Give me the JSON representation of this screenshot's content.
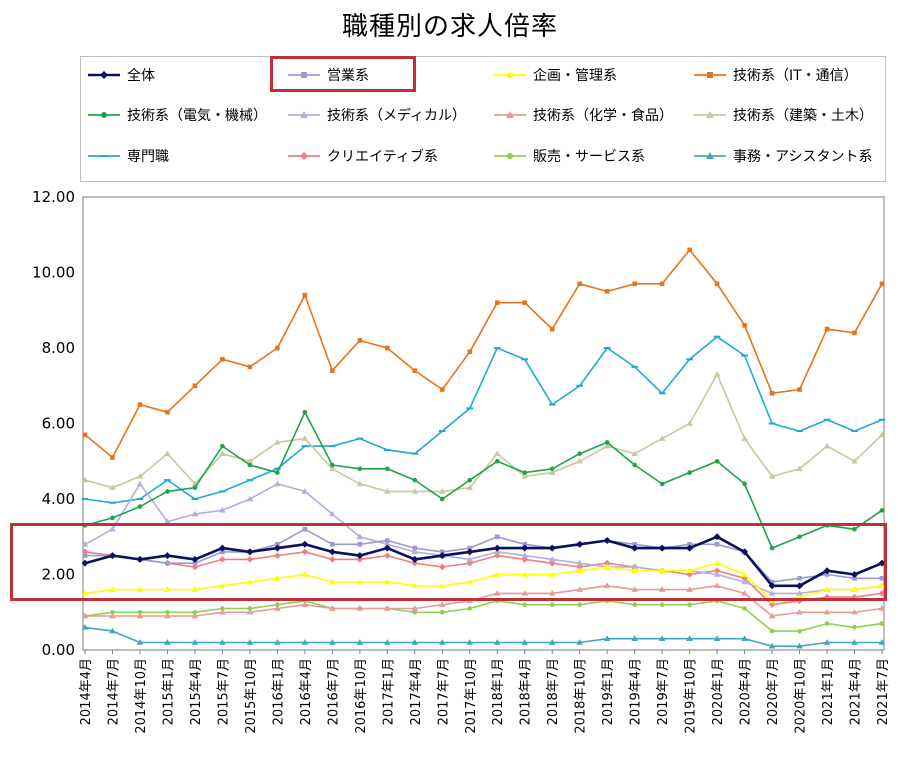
{
  "title": "職種別の求人倍率",
  "chart_data": {
    "type": "line",
    "title": "職種別の求人倍率",
    "xlabel": "",
    "ylabel": "",
    "ylim": [
      0,
      12
    ],
    "yticks": [
      "0.00",
      "2.00",
      "4.00",
      "6.00",
      "8.00",
      "10.00",
      "12.00"
    ],
    "grid": "none",
    "legend_position": "top",
    "x_tick_labels": [
      "2014年4月",
      "2014年7月",
      "2014年10月",
      "2015年1月",
      "2015年4月",
      "2015年7月",
      "2015年10月",
      "2016年1月",
      "2016年4月",
      "2016年7月",
      "2016年10月",
      "2017年1月",
      "2017年4月",
      "2017年7月",
      "2017年10月",
      "2018年1月",
      "2018年4月",
      "2018年7月",
      "2018年10月",
      "2019年1月",
      "2019年4月",
      "2019年7月",
      "2019年10月",
      "2020年1月",
      "2020年4月",
      "2020年7月",
      "2020年10月",
      "2021年1月",
      "2021年4月",
      "2021年7月"
    ],
    "series": [
      {
        "name": "全体",
        "color": "#0b1060",
        "marker": "diamond",
        "values": [
          2.3,
          2.5,
          2.4,
          2.5,
          2.4,
          2.7,
          2.6,
          2.7,
          2.8,
          2.6,
          2.5,
          2.7,
          2.4,
          2.5,
          2.6,
          2.7,
          2.7,
          2.7,
          2.8,
          2.9,
          2.7,
          2.7,
          2.7,
          3.0,
          2.6,
          1.7,
          1.7,
          2.1,
          2.0,
          2.3
        ]
      },
      {
        "name": "営業系",
        "color": "#9b9bd0",
        "marker": "square",
        "values": [
          2.5,
          2.5,
          2.4,
          2.3,
          2.3,
          2.6,
          2.6,
          2.8,
          3.2,
          2.8,
          2.8,
          2.9,
          2.7,
          2.6,
          2.7,
          3.0,
          2.8,
          2.7,
          2.8,
          2.9,
          2.8,
          2.7,
          2.8,
          2.8,
          2.6,
          1.8,
          1.9,
          2.0,
          1.9,
          1.9
        ]
      },
      {
        "name": "企画・管理系",
        "color": "#ffff00",
        "marker": "triangle",
        "values": [
          1.5,
          1.6,
          1.6,
          1.6,
          1.6,
          1.7,
          1.8,
          1.9,
          2.0,
          1.8,
          1.8,
          1.8,
          1.7,
          1.7,
          1.8,
          2.0,
          2.0,
          2.0,
          2.1,
          2.2,
          2.1,
          2.1,
          2.1,
          2.3,
          2.0,
          1.3,
          1.4,
          1.6,
          1.6,
          1.7
        ]
      },
      {
        "name": "技術系（IT・通信）",
        "color": "#e8731a",
        "marker": "square",
        "values": [
          5.7,
          5.1,
          6.5,
          6.3,
          7.0,
          7.7,
          7.5,
          8.0,
          9.4,
          7.4,
          8.2,
          8.0,
          7.4,
          6.9,
          7.9,
          9.2,
          9.2,
          8.5,
          9.7,
          9.5,
          9.7,
          9.7,
          10.6,
          9.7,
          8.6,
          6.8,
          6.9,
          8.5,
          8.4,
          9.7
        ]
      },
      {
        "name": "技術系（電気・機械）",
        "color": "#1fa34a",
        "marker": "circle",
        "values": [
          3.3,
          3.5,
          3.8,
          4.2,
          4.3,
          5.4,
          4.9,
          4.7,
          6.3,
          4.9,
          4.8,
          4.8,
          4.5,
          4.0,
          4.5,
          5.0,
          4.7,
          4.8,
          5.2,
          5.5,
          4.9,
          4.4,
          4.7,
          5.0,
          4.4,
          2.7,
          3.0,
          3.3,
          3.2,
          3.7
        ]
      },
      {
        "name": "技術系（メディカル）",
        "color": "#b0b0e0",
        "marker": "triangle",
        "values": [
          2.8,
          3.2,
          4.4,
          3.4,
          3.6,
          3.7,
          4.0,
          4.4,
          4.2,
          3.6,
          3.0,
          2.8,
          2.6,
          2.5,
          2.4,
          2.6,
          2.5,
          2.4,
          2.3,
          2.2,
          2.2,
          2.1,
          2.1,
          2.0,
          1.8,
          1.5,
          1.5,
          1.6,
          1.6,
          1.7
        ]
      },
      {
        "name": "技術系（化学・食品）",
        "color": "#e89a9a",
        "marker": "triangle",
        "values": [
          0.9,
          0.9,
          0.9,
          0.9,
          0.9,
          1.0,
          1.0,
          1.1,
          1.2,
          1.1,
          1.1,
          1.1,
          1.1,
          1.2,
          1.3,
          1.5,
          1.5,
          1.5,
          1.6,
          1.7,
          1.6,
          1.6,
          1.6,
          1.7,
          1.5,
          0.9,
          1.0,
          1.0,
          1.0,
          1.1
        ]
      },
      {
        "name": "技術系（建築・土木）",
        "color": "#c8c8a0",
        "marker": "triangle",
        "values": [
          4.5,
          4.3,
          4.6,
          5.2,
          4.4,
          5.2,
          5.0,
          5.5,
          5.6,
          4.8,
          4.4,
          4.2,
          4.2,
          4.2,
          4.3,
          5.2,
          4.6,
          4.7,
          5.0,
          5.4,
          5.2,
          5.6,
          6.0,
          7.3,
          5.6,
          4.6,
          4.8,
          5.4,
          5.0,
          5.7
        ]
      },
      {
        "name": "専門職",
        "color": "#20a8d8",
        "marker": "dash",
        "values": [
          4.0,
          3.9,
          4.0,
          4.5,
          4.0,
          4.2,
          4.5,
          4.8,
          5.4,
          5.4,
          5.6,
          5.3,
          5.2,
          5.8,
          6.4,
          8.0,
          7.7,
          6.5,
          7.0,
          8.0,
          7.5,
          6.8,
          7.7,
          8.3,
          7.8,
          6.0,
          5.8,
          6.1,
          5.8,
          6.1
        ]
      },
      {
        "name": "クリエイティブ系",
        "color": "#f08080",
        "marker": "diamond",
        "values": [
          2.6,
          2.5,
          2.4,
          2.3,
          2.2,
          2.4,
          2.4,
          2.5,
          2.6,
          2.4,
          2.4,
          2.5,
          2.3,
          2.2,
          2.3,
          2.5,
          2.4,
          2.3,
          2.2,
          2.3,
          2.2,
          2.1,
          2.0,
          2.1,
          1.9,
          1.2,
          1.3,
          1.4,
          1.4,
          1.5
        ]
      },
      {
        "name": "販売・サービス系",
        "color": "#90d050",
        "marker": "circle",
        "values": [
          0.9,
          1.0,
          1.0,
          1.0,
          1.0,
          1.1,
          1.1,
          1.2,
          1.3,
          1.1,
          1.1,
          1.1,
          1.0,
          1.0,
          1.1,
          1.3,
          1.2,
          1.2,
          1.2,
          1.3,
          1.2,
          1.2,
          1.2,
          1.3,
          1.1,
          0.5,
          0.5,
          0.7,
          0.6,
          0.7
        ]
      },
      {
        "name": "事務・アシスタント系",
        "color": "#40a8b8",
        "marker": "triangle",
        "values": [
          0.6,
          0.5,
          0.2,
          0.2,
          0.2,
          0.2,
          0.2,
          0.2,
          0.2,
          0.2,
          0.2,
          0.2,
          0.2,
          0.2,
          0.2,
          0.2,
          0.2,
          0.2,
          0.2,
          0.3,
          0.3,
          0.3,
          0.3,
          0.3,
          0.3,
          0.1,
          0.1,
          0.2,
          0.2,
          0.2
        ]
      }
    ]
  }
}
